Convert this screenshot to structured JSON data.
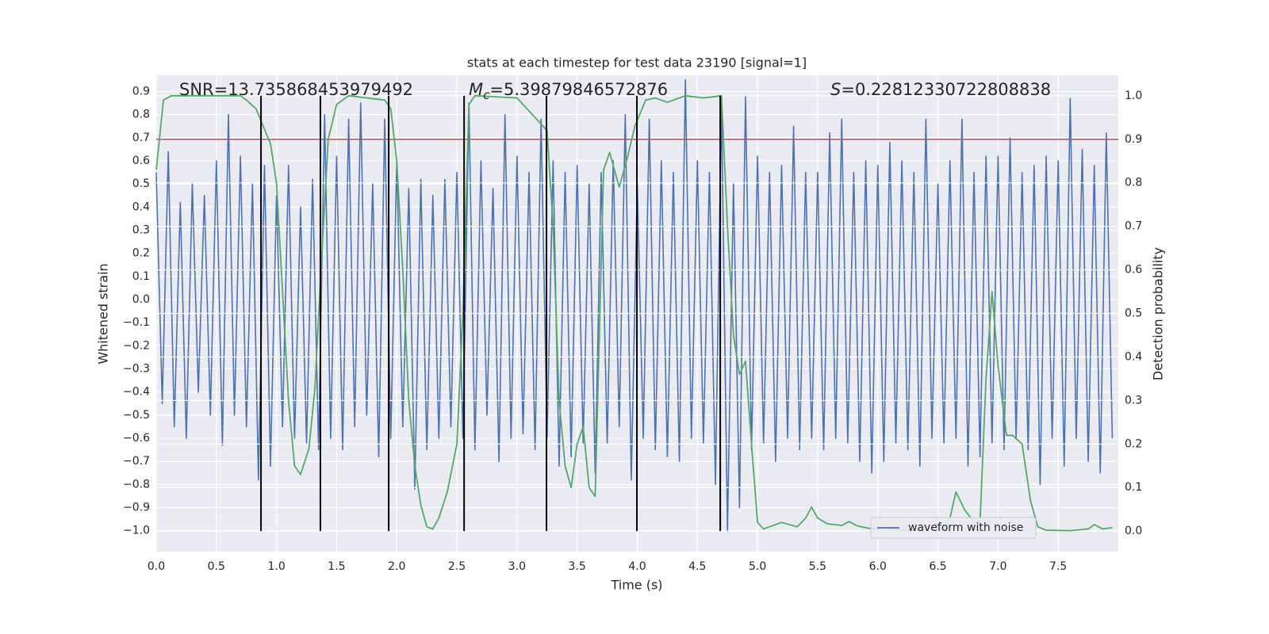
{
  "chart_data": {
    "type": "line",
    "title": "stats at each timestep for test data 23190 [signal=1]",
    "xlabel": "Time (s)",
    "ylabel": "Whitened strain",
    "y2label": "Detection probability",
    "grid": true,
    "legend": "lower right",
    "xlim": [
      0,
      8
    ],
    "ylim": [
      -1.09,
      0.97
    ],
    "y2lim": [
      -0.047,
      1.047
    ],
    "xticks": [
      {
        "value": 0,
        "label": "0.0"
      },
      {
        "value": 0.5,
        "label": "0.5"
      },
      {
        "value": 1,
        "label": "1.0"
      },
      {
        "value": 1.5,
        "label": "1.5"
      },
      {
        "value": 2,
        "label": "2.0"
      },
      {
        "value": 2.5,
        "label": "2.5"
      },
      {
        "value": 3,
        "label": "3.0"
      },
      {
        "value": 3.5,
        "label": "3.5"
      },
      {
        "value": 4,
        "label": "4.0"
      },
      {
        "value": 4.5,
        "label": "4.5"
      },
      {
        "value": 5,
        "label": "5.0"
      },
      {
        "value": 5.5,
        "label": "5.5"
      },
      {
        "value": 6,
        "label": "6.0"
      },
      {
        "value": 6.5,
        "label": "6.5"
      },
      {
        "value": 7,
        "label": "7.0"
      },
      {
        "value": 7.5,
        "label": "7.5"
      }
    ],
    "yticks": [
      {
        "value": -1,
        "label": "−1.0"
      },
      {
        "value": -0.9,
        "label": "−0.9"
      },
      {
        "value": -0.8,
        "label": "−0.8"
      },
      {
        "value": -0.7,
        "label": "−0.7"
      },
      {
        "value": -0.6,
        "label": "−0.6"
      },
      {
        "value": -0.5,
        "label": "−0.5"
      },
      {
        "value": -0.4,
        "label": "−0.4"
      },
      {
        "value": -0.3,
        "label": "−0.3"
      },
      {
        "value": -0.2,
        "label": "−0.2"
      },
      {
        "value": -0.1,
        "label": "−0.1"
      },
      {
        "value": 0,
        "label": "0.0"
      },
      {
        "value": 0.1,
        "label": "0.1"
      },
      {
        "value": 0.2,
        "label": "0.2"
      },
      {
        "value": 0.3,
        "label": "0.3"
      },
      {
        "value": 0.4,
        "label": "0.4"
      },
      {
        "value": 0.5,
        "label": "0.5"
      },
      {
        "value": 0.6,
        "label": "0.6"
      },
      {
        "value": 0.7,
        "label": "0.7"
      },
      {
        "value": 0.8,
        "label": "0.8"
      },
      {
        "value": 0.9,
        "label": "0.9"
      }
    ],
    "y2ticks": [
      {
        "value": 0,
        "label": "0.0"
      },
      {
        "value": 0.1,
        "label": "0.1"
      },
      {
        "value": 0.2,
        "label": "0.2"
      },
      {
        "value": 0.3,
        "label": "0.3"
      },
      {
        "value": 0.4,
        "label": "0.4"
      },
      {
        "value": 0.5,
        "label": "0.5"
      },
      {
        "value": 0.6,
        "label": "0.6"
      },
      {
        "value": 0.7,
        "label": "0.7"
      },
      {
        "value": 0.8,
        "label": "0.8"
      },
      {
        "value": 0.9,
        "label": "0.9"
      },
      {
        "value": 1,
        "label": "1.0"
      }
    ],
    "series": [
      {
        "name": "waveform with noise",
        "color": "#4c72b0",
        "x": [
          0,
          0.05,
          0.1,
          0.15,
          0.2,
          0.25,
          0.3,
          0.35,
          0.4,
          0.45,
          0.5,
          0.55,
          0.6,
          0.65,
          0.7,
          0.75,
          0.8,
          0.85,
          0.9,
          0.95,
          1,
          1.05,
          1.1,
          1.15,
          1.2,
          1.25,
          1.3,
          1.35,
          1.4,
          1.45,
          1.5,
          1.55,
          1.6,
          1.65,
          1.7,
          1.75,
          1.8,
          1.85,
          1.9,
          1.95,
          2,
          2.05,
          2.1,
          2.15,
          2.2,
          2.25,
          2.3,
          2.35,
          2.4,
          2.45,
          2.5,
          2.55,
          2.6,
          2.65,
          2.7,
          2.75,
          2.8,
          2.85,
          2.9,
          2.95,
          3,
          3.05,
          3.1,
          3.15,
          3.2,
          3.25,
          3.3,
          3.35,
          3.4,
          3.45,
          3.5,
          3.55,
          3.6,
          3.65,
          3.7,
          3.75,
          3.8,
          3.85,
          3.9,
          3.95,
          4,
          4.05,
          4.1,
          4.15,
          4.2,
          4.25,
          4.3,
          4.35,
          4.4,
          4.45,
          4.5,
          4.55,
          4.6,
          4.65,
          4.7,
          4.75,
          4.8,
          4.85,
          4.9,
          4.95,
          5,
          5.05,
          5.1,
          5.15,
          5.2,
          5.25,
          5.3,
          5.35,
          5.4,
          5.45,
          5.5,
          5.55,
          5.6,
          5.65,
          5.7,
          5.75,
          5.8,
          5.85,
          5.9,
          5.95,
          6,
          6.05,
          6.1,
          6.15,
          6.2,
          6.25,
          6.3,
          6.35,
          6.4,
          6.45,
          6.5,
          6.55,
          6.6,
          6.65,
          6.7,
          6.75,
          6.8,
          6.85,
          6.9,
          6.95,
          7,
          7.05,
          7.1,
          7.15,
          7.2,
          7.25,
          7.3,
          7.35,
          7.4,
          7.45,
          7.5,
          7.55,
          7.6,
          7.65,
          7.7,
          7.75,
          7.8,
          7.85,
          7.9,
          7.95
        ],
        "values": [
          0.55,
          -0.45,
          0.64,
          -0.55,
          0.42,
          -0.6,
          0.5,
          -0.4,
          0.45,
          -0.5,
          0.6,
          -0.63,
          0.8,
          -0.5,
          0.62,
          -0.55,
          0.5,
          -0.78,
          0.58,
          -0.72,
          0.45,
          -0.55,
          0.58,
          -0.6,
          0.4,
          -0.62,
          0.52,
          -0.65,
          0.8,
          -0.6,
          0.62,
          -0.65,
          0.78,
          -0.55,
          0.85,
          -0.5,
          0.5,
          -0.68,
          0.78,
          -0.6,
          0.6,
          -0.55,
          0.48,
          -0.82,
          0.52,
          -0.65,
          0.45,
          -0.6,
          0.52,
          -0.55,
          0.55,
          -0.6,
          0.85,
          -0.65,
          0.6,
          -0.5,
          0.48,
          -0.7,
          0.8,
          -0.6,
          0.62,
          -0.58,
          0.55,
          -0.65,
          0.78,
          -0.6,
          0.6,
          -0.72,
          0.55,
          -0.68,
          0.58,
          -0.62,
          0.5,
          -0.75,
          0.55,
          -0.62,
          0.6,
          -0.55,
          0.8,
          -0.78,
          0.5,
          -0.6,
          0.78,
          -0.65,
          0.6,
          -0.68,
          0.55,
          -0.7,
          0.95,
          -0.6,
          0.6,
          -0.62,
          0.55,
          -0.8,
          0.85,
          -1.0,
          0.5,
          -0.9,
          0.88,
          -0.65,
          0.62,
          -0.62,
          0.55,
          -0.7,
          0.58,
          -0.6,
          0.75,
          -0.65,
          0.55,
          -0.6,
          0.55,
          -0.65,
          0.72,
          -0.6,
          0.78,
          -0.62,
          0.55,
          -0.7,
          0.6,
          -0.75,
          0.58,
          -0.7,
          0.68,
          -0.62,
          0.6,
          -0.65,
          0.55,
          -0.72,
          0.78,
          -0.6,
          0.5,
          -0.62,
          0.6,
          -0.6,
          0.78,
          -0.72,
          0.55,
          -0.68,
          0.62,
          -0.62,
          0.62,
          -0.65,
          0.7,
          -0.6,
          0.55,
          -0.65,
          0.58,
          -0.8,
          0.62,
          -0.6,
          0.6,
          -0.72,
          0.87,
          -0.6,
          0.65,
          -0.7,
          0.58,
          -0.75,
          0.72,
          -0.6
        ]
      },
      {
        "color": "#55a868",
        "axis": "y2",
        "x": [
          0,
          0.06,
          0.125,
          0.25,
          0.4,
          0.55,
          0.7,
          0.75,
          0.83,
          0.95,
          1,
          1.05,
          1.1,
          1.15,
          1.2,
          1.27,
          1.32,
          1.37,
          1.43,
          1.5,
          1.6,
          1.9,
          1.95,
          2,
          2.05,
          2.1,
          2.15,
          2.2,
          2.25,
          2.3,
          2.35,
          2.42,
          2.5,
          2.55,
          2.6,
          2.65,
          3,
          3.05,
          3.15,
          3.25,
          3.3,
          3.35,
          3.4,
          3.45,
          3.5,
          3.55,
          3.6,
          3.65,
          3.72,
          3.77,
          3.85,
          3.92,
          3.98,
          4.07,
          4.15,
          4.25,
          4.4,
          4.55,
          4.7,
          4.75,
          4.8,
          4.85,
          4.9,
          4.95,
          5,
          5.05,
          5.2,
          5.33,
          5.4,
          5.45,
          5.5,
          5.58,
          5.7,
          5.76,
          5.83,
          5.95,
          6.1,
          6.2,
          6.32,
          6.38,
          6.45,
          6.55,
          6.6,
          6.65,
          6.72,
          6.8,
          6.85,
          6.9,
          6.95,
          7,
          7.07,
          7.12,
          7.2,
          7.27,
          7.33,
          7.4,
          7.6,
          7.75,
          7.8,
          7.87,
          7.95
        ],
        "values": [
          0.83,
          0.99,
          1.0,
          1.0,
          1.0,
          1.0,
          1.0,
          0.99,
          0.97,
          0.89,
          0.8,
          0.55,
          0.3,
          0.15,
          0.13,
          0.19,
          0.33,
          0.6,
          0.9,
          0.98,
          1.0,
          0.99,
          0.97,
          0.85,
          0.6,
          0.3,
          0.15,
          0.06,
          0.01,
          0.005,
          0.03,
          0.09,
          0.2,
          0.5,
          0.98,
          1.0,
          0.995,
          0.98,
          0.95,
          0.92,
          0.7,
          0.3,
          0.15,
          0.1,
          0.2,
          0.24,
          0.1,
          0.08,
          0.83,
          0.87,
          0.79,
          0.86,
          0.93,
          0.99,
          0.995,
          0.985,
          1.0,
          0.995,
          1.0,
          0.7,
          0.45,
          0.36,
          0.39,
          0.2,
          0.02,
          0.005,
          0.02,
          0.01,
          0.03,
          0.055,
          0.03,
          0.017,
          0.013,
          0.022,
          0.012,
          0.005,
          0.007,
          0.002,
          0.002,
          0.015,
          0.005,
          0.005,
          0.03,
          0.09,
          0.05,
          0.02,
          0.02,
          0.35,
          0.55,
          0.38,
          0.22,
          0.22,
          0.2,
          0.07,
          0.01,
          0.002,
          0.001,
          0.005,
          0.015,
          0.005,
          0.008
        ]
      }
    ],
    "hline": {
      "value": 0.9,
      "axis": "y2",
      "color": "#c44e52"
    },
    "vlines": {
      "x": [
        0.871,
        1.365,
        1.933,
        2.56,
        3.245,
        3.997,
        4.69
      ],
      "ymin": 0,
      "ymax": 1,
      "axis": "y2",
      "color": "#000000"
    },
    "annotations": [
      {
        "text": "SNR=13.735868453979492"
      },
      {
        "symbol": "M",
        "subscript": "c",
        "text": "=5.39879846572876"
      },
      {
        "symbol": "S",
        "text": "=0.22812330722808838"
      }
    ]
  }
}
